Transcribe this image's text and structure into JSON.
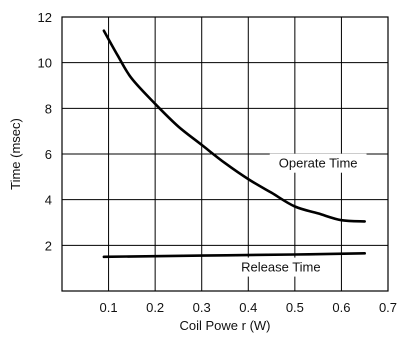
{
  "chart_data": {
    "type": "line",
    "xlabel": "Coil Powe r (W)",
    "ylabel": "Time (msec)",
    "xlim": [
      0,
      0.7
    ],
    "ylim": [
      0,
      12
    ],
    "x_ticks": [
      0.1,
      0.2,
      0.3,
      0.4,
      0.5,
      0.6,
      0.7
    ],
    "y_ticks": [
      2,
      4,
      6,
      8,
      10,
      12
    ],
    "grid": true,
    "series": [
      {
        "name": "Operate Time",
        "points": [
          [
            0.09,
            11.4
          ],
          [
            0.12,
            10.3
          ],
          [
            0.15,
            9.3
          ],
          [
            0.2,
            8.2
          ],
          [
            0.25,
            7.2
          ],
          [
            0.3,
            6.4
          ],
          [
            0.35,
            5.6
          ],
          [
            0.4,
            4.9
          ],
          [
            0.45,
            4.3
          ],
          [
            0.5,
            3.7
          ],
          [
            0.55,
            3.4
          ],
          [
            0.6,
            3.1
          ],
          [
            0.65,
            3.05
          ]
        ]
      },
      {
        "name": "Release Time",
        "points": [
          [
            0.09,
            1.5
          ],
          [
            0.3,
            1.55
          ],
          [
            0.5,
            1.6
          ],
          [
            0.65,
            1.65
          ]
        ]
      }
    ],
    "annotations": [
      {
        "text": "Operate Time",
        "at": [
          0.55,
          5.4
        ]
      },
      {
        "text": "Release Time",
        "at": [
          0.47,
          0.85
        ]
      }
    ]
  }
}
